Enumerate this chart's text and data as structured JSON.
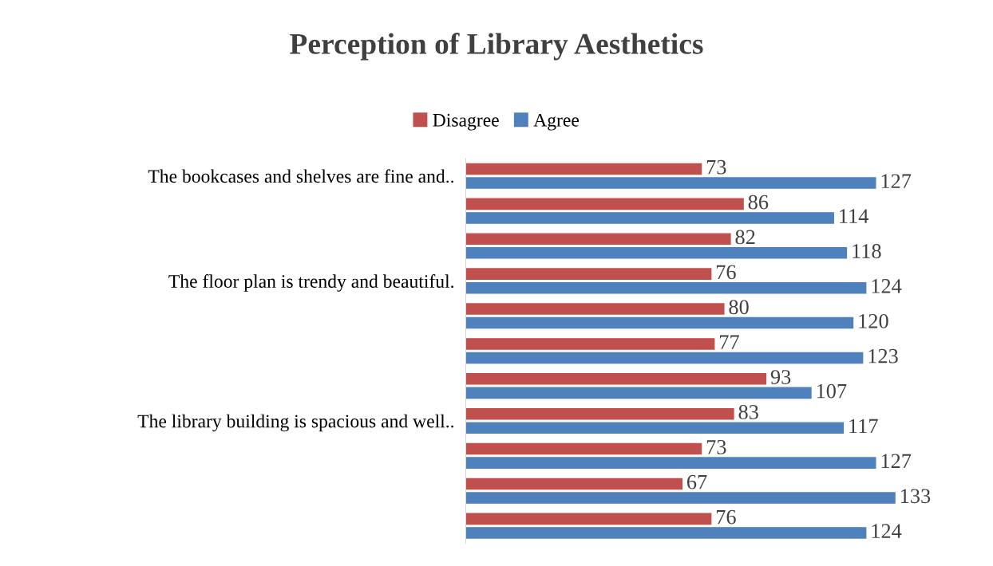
{
  "chart_data": {
    "type": "bar",
    "orientation": "horizontal",
    "title": "Perception of Library Aesthetics",
    "categories": [
      "The bookcases and shelves are fine and..",
      null,
      null,
      "The floor plan is trendy and beautiful.",
      null,
      null,
      null,
      "The library building is spacious and well..",
      null,
      null,
      null
    ],
    "series": [
      {
        "name": "Disagree",
        "color": "#c0504d",
        "values": [
          73,
          86,
          82,
          76,
          80,
          77,
          93,
          83,
          73,
          67,
          76
        ]
      },
      {
        "name": "Agree",
        "color": "#4f81bd",
        "values": [
          127,
          114,
          118,
          124,
          120,
          123,
          107,
          117,
          127,
          133,
          124
        ]
      }
    ],
    "data_labels": true,
    "legend": "top",
    "grid": false,
    "tick_labels": "y"
  }
}
